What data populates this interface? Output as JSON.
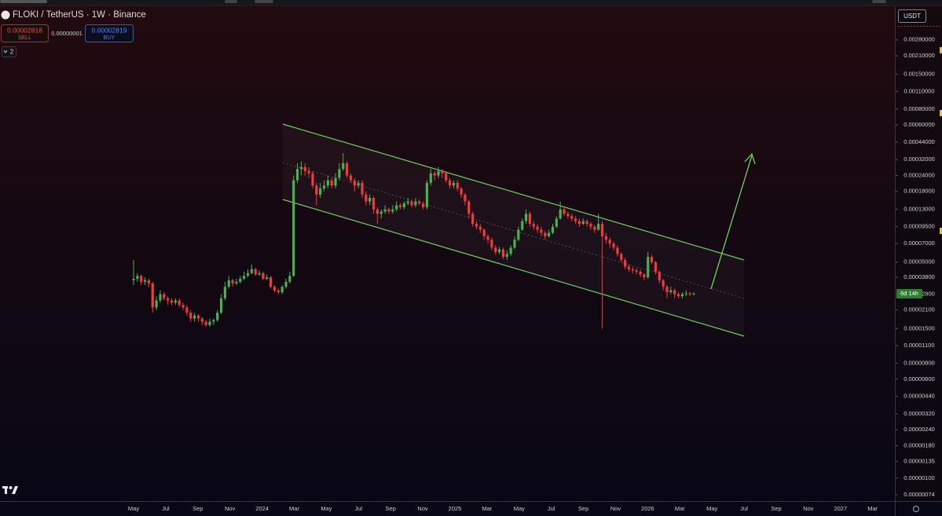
{
  "header": {
    "symbol": "FLOKI / TetherUS · 1W · Binance",
    "sell_price": "0.00002818",
    "sell_label": "SELL",
    "spread": "0.00000001",
    "buy_price": "0.00002819",
    "buy_label": "BUY",
    "indicator_count": "2",
    "currency": "USDT",
    "countdown": "6d 14h"
  },
  "chart_data": {
    "type": "candlestick",
    "log_scale": true,
    "up_color": "#4caf50",
    "down_color": "#ef3b3b",
    "ylim": [
      6.6e-07,
      0.005
    ],
    "yticks": [
      {
        "value": 0.0028,
        "label": "0.00280000"
      },
      {
        "value": 0.0021,
        "label": "0.00210000"
      },
      {
        "value": 0.0015,
        "label": "0.00150000"
      },
      {
        "value": 0.0011,
        "label": "0.00110000"
      },
      {
        "value": 0.0008,
        "label": "0.00080000"
      },
      {
        "value": 0.0006,
        "label": "0.00060000"
      },
      {
        "value": 0.00044,
        "label": "0.00044000"
      },
      {
        "value": 0.00032,
        "label": "0.00032000"
      },
      {
        "value": 0.00024,
        "label": "0.00024000"
      },
      {
        "value": 0.00018,
        "label": "0.00018000"
      },
      {
        "value": 0.00013,
        "label": "0.00013000"
      },
      {
        "value": 9.5e-05,
        "label": "0.00009500"
      },
      {
        "value": 7e-05,
        "label": "0.00007000"
      },
      {
        "value": 5e-05,
        "label": "0.00005000"
      },
      {
        "value": 3.8e-05,
        "label": "0.00003800"
      },
      {
        "value": 2.8e-05,
        "label": "0.00002800"
      },
      {
        "value": 2.1e-05,
        "label": "0.00002100"
      },
      {
        "value": 1.5e-05,
        "label": "0.00001500"
      },
      {
        "value": 1.1e-05,
        "label": "0.00001100"
      },
      {
        "value": 8e-06,
        "label": "0.00000800"
      },
      {
        "value": 6e-06,
        "label": "0.00000600"
      },
      {
        "value": 4.4e-06,
        "label": "0.00000440"
      },
      {
        "value": 3.2e-06,
        "label": "0.00000320"
      },
      {
        "value": 2.4e-06,
        "label": "0.00000240"
      },
      {
        "value": 1.8e-06,
        "label": "0.00000180"
      },
      {
        "value": 1.35e-06,
        "label": "0.00000135"
      },
      {
        "value": 1e-06,
        "label": "0.00000100"
      },
      {
        "value": 7.4e-07,
        "label": "0.00000074"
      }
    ],
    "xtick_labels": [
      "May",
      "Jul",
      "Sep",
      "Nov",
      "2024",
      "Mar",
      "May",
      "Jul",
      "Sep",
      "Nov",
      "2025",
      "Mar",
      "May",
      "Jul",
      "Sep",
      "Nov",
      "2026",
      "Mar",
      "May",
      "Jul",
      "Sep",
      "Nov",
      "2027",
      "Mar"
    ],
    "open": [
      3.6e-05,
      3.7e-05,
      3.9e-05,
      3.5e-05,
      3.6e-05,
      3.4e-05,
      2.2e-05,
      2.5e-05,
      2.8e-05,
      2.6e-05,
      2.5e-05,
      2.4e-05,
      2.5e-05,
      2.3e-05,
      2.2e-05,
      2e-05,
      1.8e-05,
      1.9e-05,
      1.8e-05,
      1.7e-05,
      1.6e-05,
      1.7e-05,
      1.75e-05,
      2e-05,
      2.6e-05,
      3.2e-05,
      3.6e-05,
      3.4e-05,
      3.5e-05,
      3.7e-05,
      3.9e-05,
      4.1e-05,
      4.4e-05,
      4e-05,
      4.1e-05,
      3.7e-05,
      3.8e-05,
      3.2e-05,
      3e-05,
      2.9e-05,
      3.2e-05,
      3.5e-05,
      3.9e-05,
      0.00022,
      0.00027,
      0.00028,
      0.00026,
      0.00025,
      0.0002,
      0.00017,
      0.00019,
      0.0002,
      0.00022,
      0.0002,
      0.00023,
      0.00027,
      0.0003,
      0.00024,
      0.00022,
      0.0002,
      0.00021,
      0.00017,
      0.00015,
      0.00016,
      0.00013,
      0.00012,
      0.000125,
      0.00013,
      0.000125,
      0.00013,
      0.00014,
      0.000135,
      0.000145,
      0.00015,
      0.00014,
      0.00015,
      0.000145,
      0.000135,
      0.00021,
      0.00025,
      0.00024,
      0.00026,
      0.00025,
      0.00022,
      0.0002,
      0.00021,
      0.00019,
      0.00017,
      0.00015,
      0.00012,
      0.0001,
      9.5e-05,
      9e-05,
      8e-05,
      7.5e-05,
      6.5e-05,
      6e-05,
      6.3e-05,
      5.5e-05,
      5.8e-05,
      6.5e-05,
      7.5e-05,
      9e-05,
      0.000105,
      0.00012,
      0.0001,
      9.5e-05,
      9e-05,
      8.5e-05,
      8e-05,
      8.5e-05,
      9.5e-05,
      0.00011,
      0.00013,
      0.00012,
      0.000115,
      0.00011,
      0.000105,
      0.0001,
      0.000105,
      0.0001,
      9.5e-05,
      9e-05,
      0.0001,
      8e-05,
      7.5e-05,
      7e-05,
      6.5e-05,
      5.8e-05,
      5.2e-05,
      4.6e-05,
      4.4e-05,
      4.3e-05,
      4.2e-05,
      4e-05,
      3.8e-05,
      5.5e-05,
      5e-05,
      4.2e-05,
      3.6e-05,
      3.2e-05,
      2.9e-05,
      3e-05,
      2.8e-05,
      2.7e-05,
      2.8e-05,
      2.85e-05,
      2.8e-05
    ],
    "high": [
      5.2e-05,
      4.1e-05,
      4e-05,
      3.8e-05,
      3.7e-05,
      3.5e-05,
      2.7e-05,
      3e-05,
      2.9e-05,
      2.7e-05,
      2.6e-05,
      2.6e-05,
      2.6e-05,
      2.4e-05,
      2.3e-05,
      2.1e-05,
      2e-05,
      1.95e-05,
      1.85e-05,
      1.75e-05,
      1.8e-05,
      1.8e-05,
      2.1e-05,
      2.8e-05,
      3.5e-05,
      3.9e-05,
      3.7e-05,
      3.7e-05,
      3.9e-05,
      4.2e-05,
      4.4e-05,
      4.8e-05,
      4.5e-05,
      4.3e-05,
      4.2e-05,
      4e-05,
      3.9e-05,
      3.3e-05,
      3.1e-05,
      3.3e-05,
      3.7e-05,
      4.2e-05,
      0.00024,
      0.0003,
      0.00031,
      0.0003,
      0.00028,
      0.00026,
      0.00021,
      0.00021,
      0.00022,
      0.00024,
      0.00023,
      0.00025,
      0.0003,
      0.00036,
      0.00031,
      0.00025,
      0.00023,
      0.00022,
      0.00022,
      0.00018,
      0.00017,
      0.000165,
      0.000135,
      0.00013,
      0.00014,
      0.000135,
      0.00014,
      0.00015,
      0.000145,
      0.00015,
      0.00016,
      0.000155,
      0.00016,
      0.000155,
      0.00015,
      0.00022,
      0.00027,
      0.00026,
      0.00028,
      0.00027,
      0.00026,
      0.00023,
      0.00022,
      0.00022,
      0.000195,
      0.000175,
      0.000155,
      0.000125,
      0.000105,
      0.0001,
      9.2e-05,
      8.3e-05,
      7.8e-05,
      6.8e-05,
      6.6e-05,
      6.5e-05,
      6.2e-05,
      6.8e-05,
      8e-05,
      9.5e-05,
      0.00011,
      0.00013,
      0.000125,
      0.000105,
      0.0001,
      9.5e-05,
      8.8e-05,
      9e-05,
      0.0001,
      0.000115,
      0.00015,
      0.000135,
      0.000125,
      0.00012,
      0.000115,
      0.00011,
      0.00011,
      0.000108,
      0.000103,
      9.8e-05,
      0.00012,
      0.000105,
      8.5e-05,
      7.8e-05,
      7.3e-05,
      6.8e-05,
      6e-05,
      5.4e-05,
      4.8e-05,
      4.6e-05,
      4.5e-05,
      4.4e-05,
      4.1e-05,
      6e-05,
      5.7e-05,
      5.1e-05,
      4.3e-05,
      3.7e-05,
      3.3e-05,
      3.2e-05,
      3.1e-05,
      2.9e-05,
      2.9e-05,
      3e-05,
      2.9e-05,
      2.9e-05
    ],
    "low": [
      3.3e-05,
      3.5e-05,
      3.3e-05,
      3.3e-05,
      3.2e-05,
      2e-05,
      2.1e-05,
      2.4e-05,
      2.5e-05,
      2.3e-05,
      2.3e-05,
      2.3e-05,
      2.2e-05,
      2.1e-05,
      1.9e-05,
      1.7e-05,
      1.7e-05,
      1.7e-05,
      1.6e-05,
      1.55e-05,
      1.55e-05,
      1.6e-05,
      1.7e-05,
      1.95e-05,
      2.5e-05,
      3.1e-05,
      3.2e-05,
      3.3e-05,
      3.4e-05,
      3.6e-05,
      3.8e-05,
      4e-05,
      3.9e-05,
      3.9e-05,
      3.6e-05,
      3.6e-05,
      3.1e-05,
      2.9e-05,
      2.8e-05,
      2.8e-05,
      3.1e-05,
      3.4e-05,
      3.8e-05,
      0.00021,
      0.00024,
      0.00024,
      0.00023,
      0.00019,
      0.00014,
      0.00016,
      0.00018,
      0.00019,
      0.00019,
      0.00019,
      0.00022,
      0.00026,
      0.00023,
      0.00021,
      0.00018,
      0.00019,
      0.00016,
      0.00014,
      0.00014,
      0.00012,
      0.0001,
      0.00011,
      0.00012,
      0.00012,
      0.00012,
      0.000125,
      0.00013,
      0.00013,
      0.00014,
      0.000135,
      0.000135,
      0.00014,
      0.00013,
      0.00013,
      0.0002,
      0.00022,
      0.00023,
      0.00023,
      0.00021,
      0.00019,
      0.00019,
      0.00018,
      0.00016,
      0.00014,
      0.00011,
      9.5e-05,
      9e-05,
      8.5e-05,
      7.5e-05,
      7e-05,
      6.2e-05,
      5.7e-05,
      5.8e-05,
      5.3e-05,
      5.2e-05,
      5.6e-05,
      6.3e-05,
      7.3e-05,
      8.8e-05,
      0.0001,
      9.5e-05,
      9e-05,
      8.5e-05,
      8e-05,
      7.5e-05,
      7.8e-05,
      8.3e-05,
      9.3e-05,
      0.000108,
      0.000115,
      0.00011,
      0.000105,
      0.0001,
      9.5e-05,
      9.8e-05,
      9.5e-05,
      9e-05,
      8.5e-05,
      8.8e-05,
      1.5e-05,
      7e-05,
      6.5e-05,
      6.2e-05,
      5.5e-05,
      5e-05,
      4.4e-05,
      4.2e-05,
      4.1e-05,
      4e-05,
      3.8e-05,
      3.6e-05,
      3.7e-05,
      4.8e-05,
      4e-05,
      3.4e-05,
      3e-05,
      2.6e-05,
      2.8e-05,
      2.6e-05,
      2.6e-05,
      2.6e-05,
      2.7e-05,
      2.7e-05,
      2.75e-05
    ],
    "close": [
      3.7e-05,
      3.9e-05,
      3.5e-05,
      3.6e-05,
      3.4e-05,
      2.2e-05,
      2.5e-05,
      2.8e-05,
      2.6e-05,
      2.5e-05,
      2.4e-05,
      2.5e-05,
      2.3e-05,
      2.2e-05,
      2e-05,
      1.8e-05,
      1.9e-05,
      1.8e-05,
      1.7e-05,
      1.6e-05,
      1.7e-05,
      1.75e-05,
      2e-05,
      2.6e-05,
      3.2e-05,
      3.6e-05,
      3.4e-05,
      3.5e-05,
      3.7e-05,
      3.9e-05,
      4.1e-05,
      4.4e-05,
      4e-05,
      4.1e-05,
      3.7e-05,
      3.8e-05,
      3.2e-05,
      3e-05,
      2.9e-05,
      3.2e-05,
      3.5e-05,
      3.9e-05,
      0.00022,
      0.00027,
      0.00028,
      0.00026,
      0.00025,
      0.0002,
      0.00017,
      0.00019,
      0.0002,
      0.00022,
      0.0002,
      0.00023,
      0.00027,
      0.0003,
      0.00024,
      0.00022,
      0.0002,
      0.00021,
      0.00017,
      0.00015,
      0.00016,
      0.00013,
      0.00012,
      0.000125,
      0.00013,
      0.000125,
      0.00013,
      0.00014,
      0.000135,
      0.000145,
      0.00015,
      0.00014,
      0.00015,
      0.000145,
      0.000135,
      0.00021,
      0.00025,
      0.00024,
      0.00026,
      0.00025,
      0.00022,
      0.0002,
      0.00021,
      0.00019,
      0.00017,
      0.00015,
      0.00012,
      0.0001,
      9.5e-05,
      9e-05,
      8e-05,
      7.5e-05,
      6.5e-05,
      6e-05,
      6.3e-05,
      5.5e-05,
      5.8e-05,
      6.5e-05,
      7.5e-05,
      9e-05,
      0.000105,
      0.00012,
      0.0001,
      9.5e-05,
      9e-05,
      8.5e-05,
      8e-05,
      8.5e-05,
      9.5e-05,
      0.00011,
      0.00013,
      0.00012,
      0.000115,
      0.00011,
      0.000105,
      0.0001,
      0.000105,
      0.0001,
      9.5e-05,
      9e-05,
      0.0001,
      8e-05,
      7.5e-05,
      7e-05,
      6.5e-05,
      5.8e-05,
      5.2e-05,
      4.6e-05,
      4.4e-05,
      4.3e-05,
      4.2e-05,
      4e-05,
      3.8e-05,
      5.5e-05,
      5e-05,
      4.2e-05,
      3.6e-05,
      3.2e-05,
      2.9e-05,
      3e-05,
      2.8e-05,
      2.7e-05,
      2.8e-05,
      2.85e-05,
      2.8e-05,
      2.82e-05
    ]
  }
}
